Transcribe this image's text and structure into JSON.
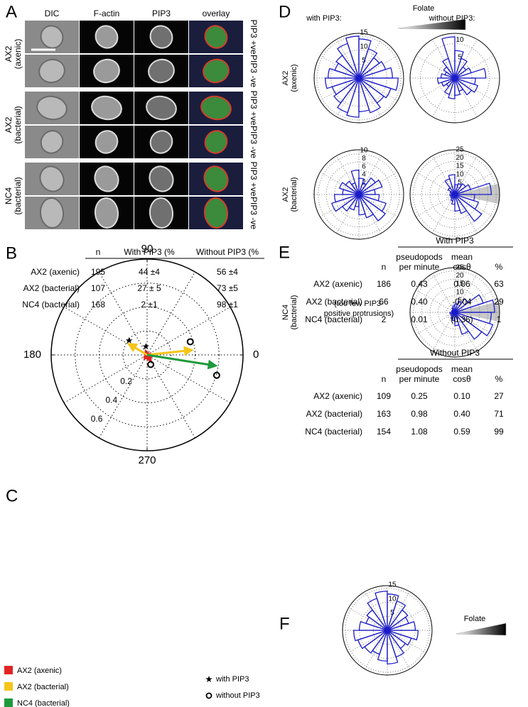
{
  "panel_letters": [
    "A",
    "B",
    "C",
    "D",
    "E",
    "F"
  ],
  "panel_a": {
    "columns": [
      "DIC",
      "F-actin",
      "PIP3",
      "overlay"
    ],
    "groups": [
      [
        "AX2",
        "(axenic)"
      ],
      [
        "AX2",
        "(bacterial)"
      ],
      [
        "NC4",
        "(bacterial)"
      ]
    ],
    "row_labels": [
      "PIP3 +ve",
      "PIP3 -ve",
      "PIP3 +ve",
      "PIP3 -ve",
      "PIP3 +ve",
      "PIP3 -ve"
    ]
  },
  "panel_b": {
    "header": [
      "n",
      "With PIP3 (%",
      "Without PIP3 (%"
    ],
    "rows": [
      [
        "AX2 (axenic)",
        "195",
        "44 ±4",
        "56 ±4"
      ],
      [
        "AX2 (bacterial)",
        "107",
        "27 ± 5",
        "73 ±5"
      ],
      [
        "NC4 (bacterial)",
        "168",
        "2 ±1",
        "98 ±1"
      ]
    ]
  },
  "panel_c": {
    "type": "polar",
    "rlim": [
      0,
      0.8
    ],
    "rticks": [
      0.2,
      0.4,
      0.6
    ],
    "angle_ticks": [
      0,
      90,
      180,
      270
    ],
    "series": [
      {
        "name": "AX2 (axenic)",
        "color": "#e02424",
        "with_pip3": {
          "x": -0.01,
          "y": 0.03
        },
        "without_pip3": {
          "x": 0.03,
          "y": -0.05
        },
        "star": {
          "x": -0.01,
          "y": 0.07
        },
        "circle": {
          "x": 0.03,
          "y": -0.08
        }
      },
      {
        "name": "AX2 (bacterial)",
        "color": "#f5c518",
        "with_pip3": {
          "x": -0.15,
          "y": 0.09
        },
        "without_pip3": {
          "x": 0.37,
          "y": 0.04
        },
        "star": {
          "x": -0.15,
          "y": 0.12
        },
        "circle": {
          "x": 0.36,
          "y": 0.11
        }
      },
      {
        "name": "NC4 (bacterial)",
        "color": "#1e9a3c",
        "with_pip3": null,
        "without_pip3": {
          "x": 0.57,
          "y": -0.09
        },
        "star": null,
        "circle": {
          "x": 0.58,
          "y": -0.17
        }
      }
    ],
    "marker_legend": [
      "with PIP3",
      "without PIP3"
    ]
  },
  "panel_d": {
    "column_titles": [
      "with PIP3:",
      "without PIP3:"
    ],
    "folate_label": "Folate",
    "row_labels": [
      [
        "AX2",
        "(axenic)"
      ],
      [
        "AX2",
        "(bacterial)"
      ],
      [
        "NC4",
        "(bacterial)"
      ]
    ],
    "note": [
      "(too few PIP3-",
      "positive protrusions)"
    ],
    "roses": [
      {
        "type": "rose",
        "rlim": [
          0,
          16
        ],
        "rticks": [
          5,
          10,
          15
        ],
        "values": [
          12,
          10,
          9,
          11,
          14,
          15,
          13,
          10,
          9,
          11,
          12,
          10,
          11,
          13,
          14,
          12,
          13,
          11,
          12,
          14
        ]
      },
      {
        "type": "rose",
        "rlim": [
          0,
          13
        ],
        "rticks": [
          5,
          10
        ],
        "values": [
          9,
          5,
          4,
          6,
          8,
          12,
          6,
          4,
          3,
          4,
          5,
          4,
          3,
          5,
          6,
          5,
          4,
          6,
          7,
          6
        ]
      },
      {
        "type": "rose",
        "rlim": [
          0,
          11
        ],
        "rticks": [
          2,
          4,
          6,
          8,
          10
        ],
        "values": [
          4,
          6,
          5,
          3,
          4,
          6,
          3,
          4,
          5,
          4,
          6,
          7,
          5,
          4,
          3,
          5,
          6,
          8,
          7,
          5
        ]
      },
      {
        "type": "rose",
        "rlim": [
          0,
          27
        ],
        "rticks": [
          5,
          10,
          15,
          20,
          25
        ],
        "values": [
          22,
          10,
          8,
          7,
          6,
          12,
          10,
          5,
          3,
          2,
          3,
          2,
          3,
          4,
          6,
          10,
          12,
          20,
          15,
          12
        ]
      },
      {
        "type": "rose",
        "rlim": [
          0,
          27
        ],
        "rticks": [
          5,
          10,
          15,
          20,
          25
        ],
        "values": [
          24,
          18,
          10,
          7,
          5,
          4,
          3,
          2,
          2,
          2,
          3,
          2,
          3,
          4,
          5,
          8,
          14,
          20,
          24,
          22
        ]
      }
    ]
  },
  "panel_e": {
    "tables": [
      {
        "title": "With PIP3",
        "header": [
          [
            "n"
          ],
          [
            "pseudopods",
            "per minute"
          ],
          [
            "mean",
            "cosθ"
          ],
          [
            "%"
          ]
        ],
        "rows": [
          [
            "AX2 (axenic)",
            "186",
            "0.43",
            "0.06",
            "63"
          ],
          [
            "AX2 (bacterial)",
            "66",
            "0.40",
            "-0.04",
            "29"
          ],
          [
            "NC4 (bacterial)",
            "2",
            "0.01",
            "(0.36)",
            "1"
          ]
        ]
      },
      {
        "title": "Without PIP3",
        "header": [
          [
            "n"
          ],
          [
            "pseudopods",
            "per minute"
          ],
          [
            "mean",
            "cosθ"
          ],
          [
            "%"
          ]
        ],
        "rows": [
          [
            "AX2 (axenic)",
            "109",
            "0.25",
            "0.10",
            "27"
          ],
          [
            "AX2 (bacterial)",
            "163",
            "0.98",
            "0.40",
            "71"
          ],
          [
            "NC4 (bacterial)",
            "154",
            "1.08",
            "0.59",
            "99"
          ]
        ]
      }
    ]
  },
  "panel_f": {
    "folate_label": "Folate",
    "rose": {
      "type": "rose",
      "rlim": [
        0,
        16
      ],
      "rticks": [
        5,
        10,
        15
      ],
      "values": [
        10,
        8,
        9,
        11,
        13,
        14,
        12,
        9,
        8,
        10,
        12,
        11,
        10,
        9,
        11,
        12,
        10,
        8,
        9,
        11
      ]
    }
  }
}
